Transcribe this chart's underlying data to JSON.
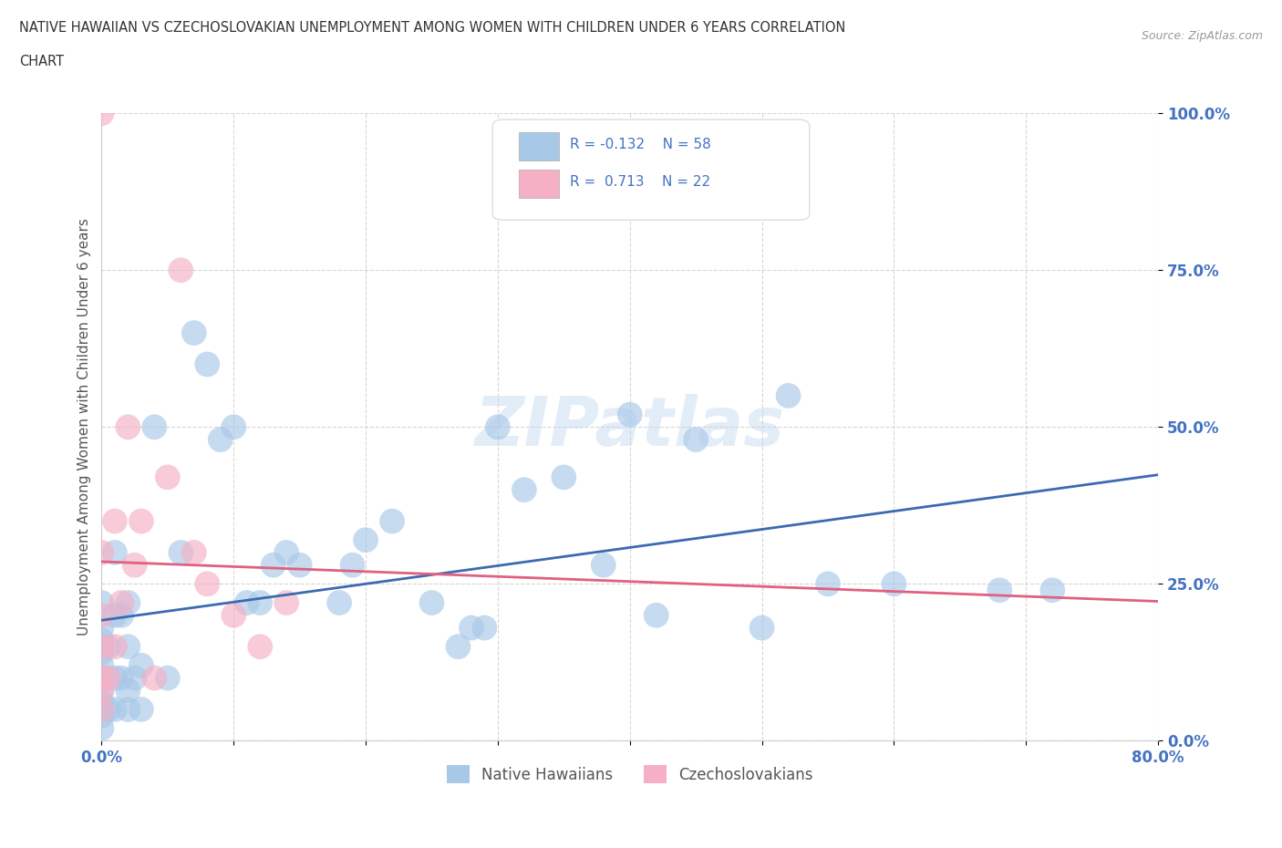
{
  "title_line1": "NATIVE HAWAIIAN VS CZECHOSLOVAKIAN UNEMPLOYMENT AMONG WOMEN WITH CHILDREN UNDER 6 YEARS CORRELATION",
  "title_line2": "CHART",
  "source": "Source: ZipAtlas.com",
  "ylabel": "Unemployment Among Women with Children Under 6 years",
  "xlim": [
    0.0,
    0.8
  ],
  "ylim": [
    0.0,
    1.0
  ],
  "xtick_positions": [
    0.0,
    0.1,
    0.2,
    0.3,
    0.4,
    0.5,
    0.6,
    0.7,
    0.8
  ],
  "xticklabels": [
    "0.0%",
    "",
    "",
    "",
    "",
    "",
    "",
    "",
    "80.0%"
  ],
  "ytick_positions": [
    0.0,
    0.25,
    0.5,
    0.75,
    1.0
  ],
  "yticklabels": [
    "0.0%",
    "25.0%",
    "50.0%",
    "75.0%",
    "100.0%"
  ],
  "color_native": "#a8c8e8",
  "color_czech": "#f5b0c5",
  "color_native_line": "#3c6ab0",
  "color_czech_line": "#e06080",
  "watermark": "ZIPatlas",
  "native_x": [
    0.0,
    0.0,
    0.0,
    0.0,
    0.0,
    0.0,
    0.0,
    0.0,
    0.0,
    0.0,
    0.005,
    0.005,
    0.01,
    0.01,
    0.01,
    0.01,
    0.015,
    0.015,
    0.02,
    0.02,
    0.02,
    0.02,
    0.025,
    0.03,
    0.03,
    0.04,
    0.05,
    0.06,
    0.07,
    0.08,
    0.09,
    0.1,
    0.11,
    0.12,
    0.13,
    0.14,
    0.15,
    0.18,
    0.19,
    0.2,
    0.22,
    0.25,
    0.27,
    0.28,
    0.29,
    0.3,
    0.32,
    0.35,
    0.38,
    0.4,
    0.42,
    0.45,
    0.5,
    0.52,
    0.55,
    0.6,
    0.68,
    0.72
  ],
  "native_y": [
    0.02,
    0.04,
    0.06,
    0.08,
    0.1,
    0.12,
    0.14,
    0.16,
    0.18,
    0.22,
    0.05,
    0.15,
    0.05,
    0.1,
    0.2,
    0.3,
    0.1,
    0.2,
    0.05,
    0.08,
    0.15,
    0.22,
    0.1,
    0.05,
    0.12,
    0.5,
    0.1,
    0.3,
    0.65,
    0.6,
    0.48,
    0.5,
    0.22,
    0.22,
    0.28,
    0.3,
    0.28,
    0.22,
    0.28,
    0.32,
    0.35,
    0.22,
    0.15,
    0.18,
    0.18,
    0.5,
    0.4,
    0.42,
    0.28,
    0.52,
    0.2,
    0.48,
    0.18,
    0.55,
    0.25,
    0.25,
    0.24,
    0.24
  ],
  "czech_x": [
    0.0,
    0.0,
    0.0,
    0.0,
    0.0,
    0.0,
    0.0,
    0.005,
    0.01,
    0.01,
    0.015,
    0.02,
    0.025,
    0.03,
    0.04,
    0.05,
    0.06,
    0.07,
    0.08,
    0.1,
    0.12,
    0.14
  ],
  "czech_y": [
    1.0,
    0.05,
    0.08,
    0.1,
    0.15,
    0.2,
    0.3,
    0.1,
    0.15,
    0.35,
    0.22,
    0.5,
    0.28,
    0.35,
    0.1,
    0.42,
    0.75,
    0.3,
    0.25,
    0.2,
    0.15,
    0.22
  ]
}
